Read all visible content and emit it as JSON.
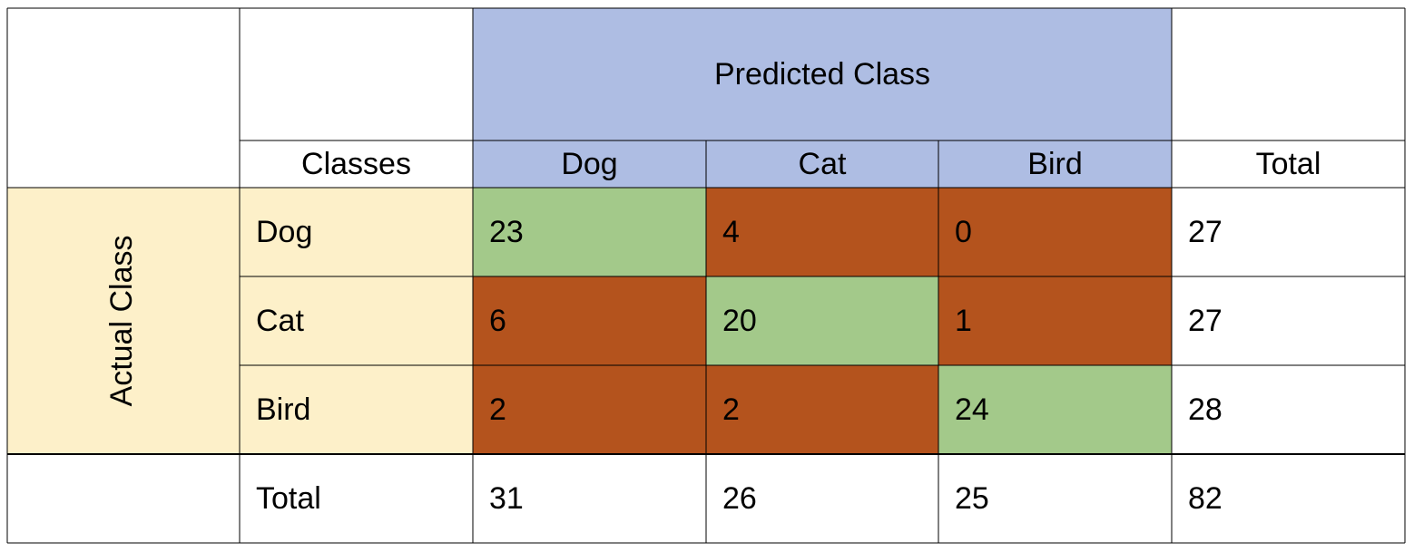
{
  "chart_data": {
    "type": "table",
    "header": {
      "predicted_label": "Predicted Class",
      "classes_label": "Classes",
      "total_label": "Total"
    },
    "actual_label": "Actual Class",
    "columns": [
      "Dog",
      "Cat",
      "Bird"
    ],
    "rows": [
      {
        "label": "Dog",
        "values": [
          23,
          4,
          0
        ],
        "total": 27
      },
      {
        "label": "Cat",
        "values": [
          6,
          20,
          1
        ],
        "total": 27
      },
      {
        "label": "Bird",
        "values": [
          2,
          2,
          24
        ],
        "total": 28
      }
    ],
    "totals_row": {
      "label": "Total",
      "values": [
        31,
        26,
        25
      ],
      "grand_total": 82
    }
  },
  "colors": {
    "header_fill": "#aebde3",
    "actual_fill": "#fdf0c9",
    "correct_fill": "#a3c98a",
    "error_fill": "#b4531d",
    "grid": "#000000"
  }
}
